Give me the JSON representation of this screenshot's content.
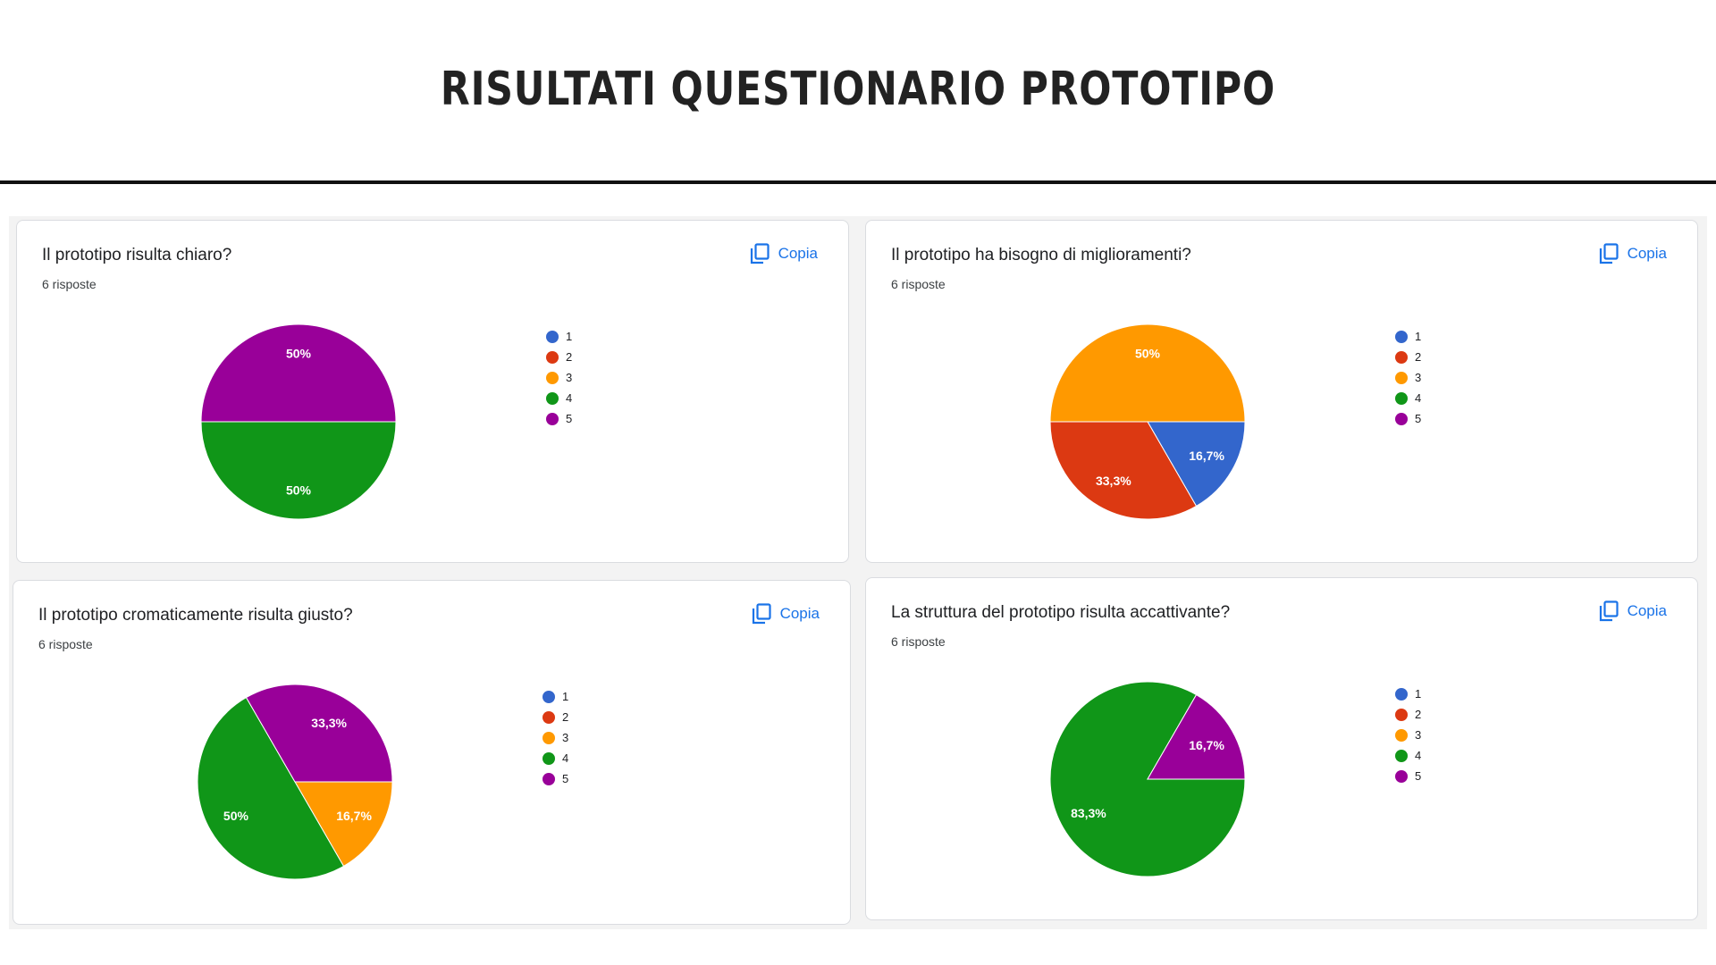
{
  "page": {
    "title": "RISULTATI QUESTIONARIO PROTOTIPO"
  },
  "copy_label": "Copia",
  "colors": {
    "1": "#3366cc",
    "2": "#dc3912",
    "3": "#ff9900",
    "4": "#109618",
    "5": "#990099"
  },
  "chart_data": [
    {
      "type": "pie",
      "title": "Il prototipo risulta chiaro?",
      "subtitle": "6 risposte",
      "categories": [
        "1",
        "2",
        "3",
        "4",
        "5"
      ],
      "values": [
        0,
        0,
        0,
        3,
        3
      ],
      "labels": [
        "",
        "",
        "",
        "50%",
        "50%"
      ],
      "legend": "right"
    },
    {
      "type": "pie",
      "title": "Il prototipo ha bisogno di miglioramenti?",
      "subtitle": "6 risposte",
      "categories": [
        "1",
        "2",
        "3",
        "4",
        "5"
      ],
      "values": [
        1,
        2,
        3,
        0,
        0
      ],
      "labels": [
        "16,7%",
        "33,3%",
        "50%",
        "",
        ""
      ],
      "legend": "right"
    },
    {
      "type": "pie",
      "title": "Il prototipo cromaticamente risulta giusto?",
      "subtitle": "6 risposte",
      "categories": [
        "1",
        "2",
        "3",
        "4",
        "5"
      ],
      "values": [
        0,
        0,
        1,
        3,
        2
      ],
      "labels": [
        "",
        "",
        "16,7%",
        "50%",
        "33,3%"
      ],
      "legend": "right"
    },
    {
      "type": "pie",
      "title": "La struttura del prototipo risulta accattivante?",
      "subtitle": "6 risposte",
      "categories": [
        "1",
        "2",
        "3",
        "4",
        "5"
      ],
      "values": [
        0,
        0,
        0,
        5,
        1
      ],
      "labels": [
        "",
        "",
        "",
        "83,3%",
        "16,7%"
      ],
      "legend": "right"
    }
  ]
}
